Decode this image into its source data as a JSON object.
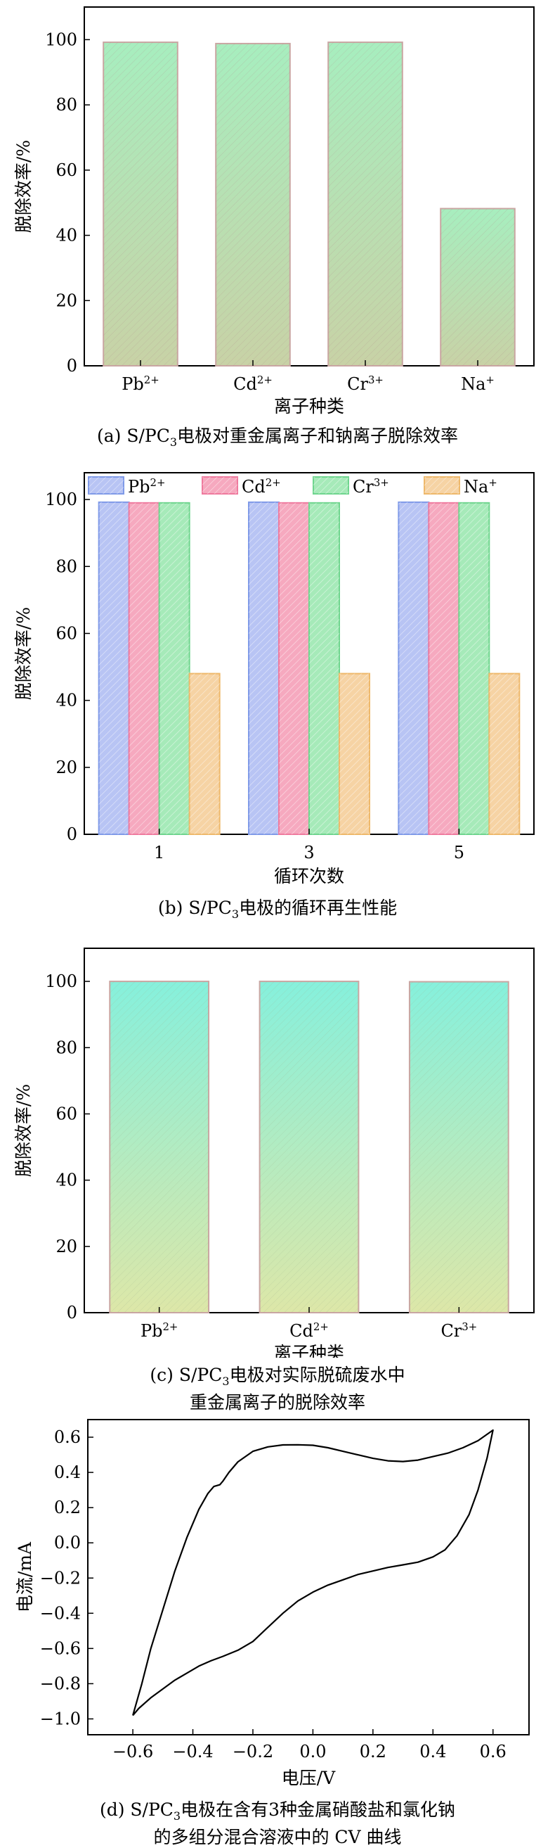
{
  "chart_data": [
    {
      "type": "bar",
      "panel": "a",
      "categories": [
        "Pb",
        "Cd",
        "Cr",
        "Na"
      ],
      "category_charges": [
        "2+",
        "2+",
        "3+",
        "+"
      ],
      "values": [
        99.2,
        98.8,
        99.2,
        48.2
      ],
      "ylabel": "脱除效率/%",
      "xlabel": "离子种类",
      "ylim": [
        0,
        110
      ],
      "yticks": [
        0,
        20,
        40,
        60,
        80,
        100
      ],
      "colors": {
        "top": "#a7eebf",
        "bottom": "#c8d2a6",
        "edge": "#c9a6a2"
      },
      "caption": {
        "prefix": "(a) S/PC",
        "sub": "3",
        "suffix": "电极对重金属离子和钠离子脱除效率"
      }
    },
    {
      "type": "bar",
      "panel": "b",
      "categories": [
        "1",
        "3",
        "5"
      ],
      "series": [
        {
          "name": "Pb",
          "charge": "2+",
          "values": [
            99.2,
            99.2,
            99.2
          ],
          "color": "#b8c4f4",
          "edge": "#7f9ae8"
        },
        {
          "name": "Cd",
          "charge": "2+",
          "values": [
            99.0,
            99.0,
            99.0
          ],
          "color": "#f6a9bf",
          "edge": "#ef7a9e"
        },
        {
          "name": "Cr",
          "charge": "3+",
          "values": [
            99.0,
            99.0,
            99.0
          ],
          "color": "#a6eab9",
          "edge": "#6fd58e"
        },
        {
          "name": "Na",
          "charge": "+",
          "values": [
            48.0,
            48.0,
            48.0
          ],
          "color": "#f6d3a4",
          "edge": "#eeb86a"
        }
      ],
      "ylabel": "脱除效率/%",
      "xlabel": "循环次数",
      "ylim": [
        0,
        108
      ],
      "yticks": [
        0,
        20,
        40,
        60,
        80,
        100
      ],
      "legend": "top",
      "caption": {
        "prefix": "(b) S/PC",
        "sub": "3",
        "suffix": "电极的循环再生性能"
      }
    },
    {
      "type": "bar",
      "panel": "c",
      "categories": [
        "Pb",
        "Cd",
        "Cr"
      ],
      "category_charges": [
        "2+",
        "2+",
        "3+"
      ],
      "values": [
        100.0,
        100.0,
        99.9
      ],
      "ylabel": "脱除效率/%",
      "xlabel": "离子种类",
      "ylim": [
        0,
        110
      ],
      "yticks": [
        0,
        20,
        40,
        60,
        80,
        100
      ],
      "colors": {
        "top": "#86f0dc",
        "bottom": "#dde7a8",
        "edge": "#c9a6a2"
      },
      "caption": {
        "line1_prefix": "(c) S/PC",
        "sub": "3",
        "line1_suffix": "电极对实际脱硫废水中",
        "line2": "重金属离子的脱除效率"
      }
    },
    {
      "type": "line",
      "panel": "d",
      "x": [
        -0.6,
        -0.57,
        -0.54,
        -0.5,
        -0.46,
        -0.42,
        -0.38,
        -0.35,
        -0.33,
        -0.31,
        -0.3,
        -0.28,
        -0.25,
        -0.2,
        -0.15,
        -0.1,
        -0.05,
        0.0,
        0.05,
        0.1,
        0.15,
        0.2,
        0.25,
        0.3,
        0.35,
        0.4,
        0.45,
        0.5,
        0.55,
        0.6,
        0.58,
        0.55,
        0.52,
        0.48,
        0.44,
        0.4,
        0.35,
        0.3,
        0.25,
        0.2,
        0.15,
        0.1,
        0.05,
        0.0,
        -0.05,
        -0.1,
        -0.15,
        -0.2,
        -0.25,
        -0.3,
        -0.34,
        -0.38,
        -0.42,
        -0.46,
        -0.5,
        -0.54,
        -0.58,
        -0.6
      ],
      "y": [
        -0.98,
        -0.8,
        -0.6,
        -0.38,
        -0.16,
        0.03,
        0.19,
        0.28,
        0.32,
        0.33,
        0.35,
        0.4,
        0.46,
        0.52,
        0.545,
        0.556,
        0.557,
        0.554,
        0.54,
        0.52,
        0.5,
        0.48,
        0.466,
        0.462,
        0.47,
        0.49,
        0.51,
        0.54,
        0.58,
        0.64,
        0.48,
        0.3,
        0.16,
        0.04,
        -0.04,
        -0.08,
        -0.11,
        -0.125,
        -0.14,
        -0.16,
        -0.18,
        -0.21,
        -0.24,
        -0.28,
        -0.33,
        -0.4,
        -0.48,
        -0.56,
        -0.61,
        -0.645,
        -0.67,
        -0.7,
        -0.74,
        -0.78,
        -0.83,
        -0.88,
        -0.94,
        -0.98
      ],
      "xlabel": "电压/V",
      "ylabel": "电流/mA",
      "xlim": [
        -0.75,
        0.72
      ],
      "ylim": [
        -1.09,
        0.7
      ],
      "xticks": [
        -0.6,
        -0.4,
        -0.2,
        0.0,
        0.2,
        0.4,
        0.6
      ],
      "xtick_labels": [
        "−0.6",
        "−0.4",
        "−0.2",
        "0.0",
        "0.2",
        "0.4",
        "0.6"
      ],
      "yticks": [
        -1.0,
        -0.8,
        -0.6,
        -0.4,
        -0.2,
        0.0,
        0.2,
        0.4,
        0.6
      ],
      "ytick_labels": [
        "−1.0",
        "−0.8",
        "−0.6",
        "−0.4",
        "−0.2",
        "0.0",
        "0.2",
        "0.4",
        "0.6"
      ],
      "caption": {
        "line1_prefix": "(d) S/PC",
        "sub": "3",
        "line1_suffix": "电极在含有3种金属硝酸盐和氯化钠",
        "line2": "的多组分混合溶液中的 CV 曲线"
      }
    }
  ]
}
